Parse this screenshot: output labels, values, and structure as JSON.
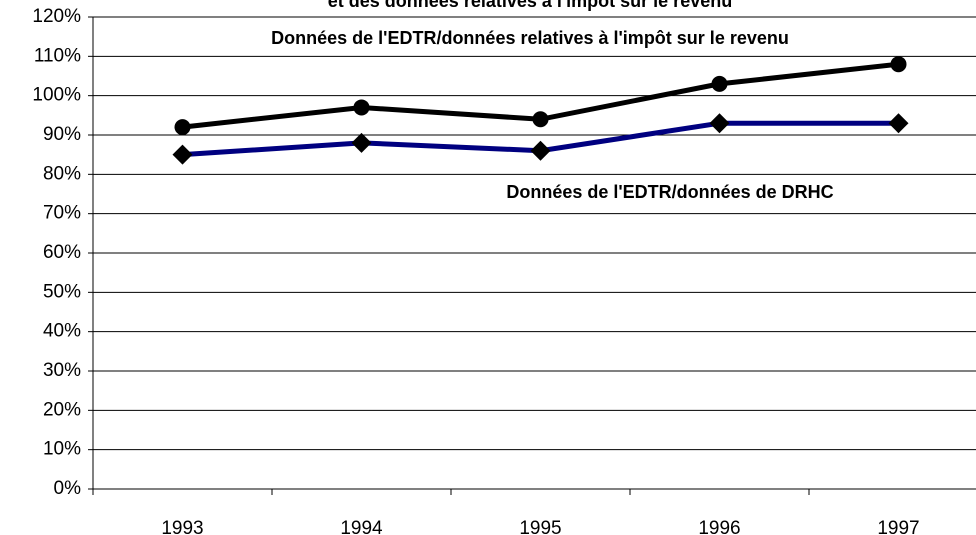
{
  "chart_data": {
    "type": "line",
    "title": "et des données relatives à l'impôt sur le revenu",
    "categories": [
      "1993",
      "1994",
      "1995",
      "1996",
      "1997"
    ],
    "series": [
      {
        "name": "Données de l'EDTR/données relatives à l'impôt sur le revenu",
        "color": "#000000",
        "marker": "circle",
        "values": [
          92,
          97,
          94,
          103,
          108
        ]
      },
      {
        "name": "Données de l'EDTR/données de DRHC",
        "color": "#000080",
        "marker": "diamond",
        "values": [
          85,
          88,
          86,
          93,
          93
        ]
      }
    ],
    "marker_color": "#000000",
    "ylim": [
      0,
      120
    ],
    "yticks": [
      {
        "value": 0,
        "label": "0%"
      },
      {
        "value": 10,
        "label": "10%"
      },
      {
        "value": 20,
        "label": "20%"
      },
      {
        "value": 30,
        "label": "30%"
      },
      {
        "value": 40,
        "label": "40%"
      },
      {
        "value": 50,
        "label": "50%"
      },
      {
        "value": 60,
        "label": "60%"
      },
      {
        "value": 70,
        "label": "70%"
      },
      {
        "value": 80,
        "label": "80%"
      },
      {
        "value": 90,
        "label": "90%"
      },
      {
        "value": 100,
        "label": "100%"
      },
      {
        "value": 110,
        "label": "110%"
      },
      {
        "value": 120,
        "label": "120%"
      }
    ],
    "grid": true
  }
}
